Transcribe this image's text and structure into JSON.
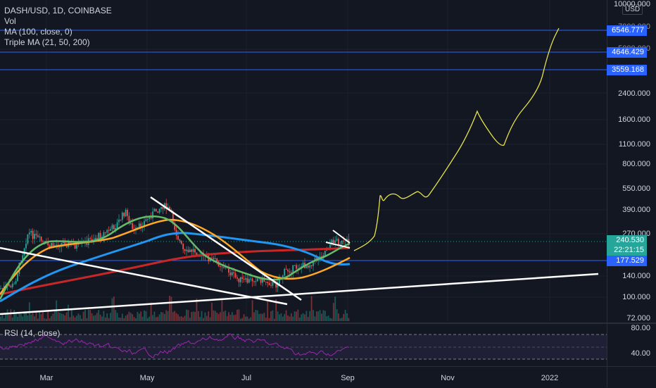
{
  "legend": {
    "symbol": "DASH/USD, 1D, COINBASE",
    "vol": "Vol",
    "ma": "MA (100, close, 0)",
    "triple_ma": "Triple MA (21, 50, 200)"
  },
  "rsi_legend": "RSI (14, close)",
  "currency": "USD",
  "price_axis": [
    "10000.000",
    "7000.000",
    "5000.000",
    "2400.000",
    "1600.000",
    "1100.000",
    "800.000",
    "550.000",
    "390.000",
    "270.000",
    "140.000",
    "100.000",
    "72.000"
  ],
  "rsi_axis": [
    "80.00",
    "40.00"
  ],
  "price_tags": {
    "line1": "6546.777",
    "line2": "4646.429",
    "line3": "3559.168",
    "current_price": "240.530",
    "countdown": "22:21:15",
    "support": "177.529"
  },
  "time_axis": [
    "Mar",
    "May",
    "Jul",
    "Sep",
    "Nov",
    "2022"
  ],
  "colors": {
    "background": "#131722",
    "horizontal_lines": "#2962ff",
    "ma100": "#2196f3",
    "ma200": "#c62828",
    "ma21": "#66bb6a",
    "ma50": "#ffa726",
    "projection": "#e8e24a",
    "trendlines": "#ffffff",
    "rsi": "#9c27b0",
    "candle_up": "#26a69a",
    "candle_down": "#ef5350"
  }
}
